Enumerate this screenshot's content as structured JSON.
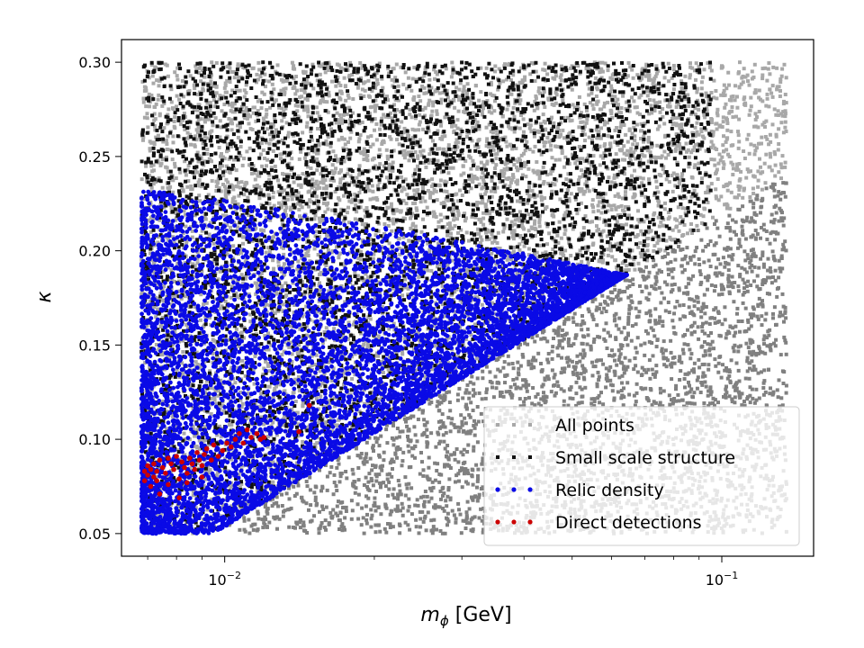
{
  "chart_data": {
    "type": "scatter",
    "title": "",
    "xlabel": "m_ϕ [GeV]",
    "xlabel_main": "m",
    "xlabel_sub": "ϕ",
    "xlabel_unit": " [GeV]",
    "ylabel": "κ",
    "xscale": "log",
    "xlim": [
      0.0062,
      0.153
    ],
    "ylim": [
      0.038,
      0.312
    ],
    "x_ticks": [
      {
        "value": 0.01,
        "base": "10",
        "exp": "−2"
      },
      {
        "value": 0.1,
        "base": "10",
        "exp": "−1"
      }
    ],
    "y_ticks": [
      {
        "value": 0.05,
        "label": "0.05"
      },
      {
        "value": 0.1,
        "label": "0.10"
      },
      {
        "value": 0.15,
        "label": "0.15"
      },
      {
        "value": 0.2,
        "label": "0.20"
      },
      {
        "value": 0.25,
        "label": "0.25"
      },
      {
        "value": 0.3,
        "label": "0.30"
      }
    ],
    "grid": false,
    "legend_position": "bottom-right",
    "series": [
      {
        "name": "All points",
        "color": "#8c8c8c",
        "region": {
          "x_range": [
            0.0068,
            0.135
          ],
          "y_range": [
            0.05,
            0.3
          ]
        }
      },
      {
        "name": "Small scale structure",
        "color": "#111111",
        "region": {
          "x_range": [
            0.0068,
            0.095
          ],
          "y_range": [
            0.05,
            0.3
          ]
        }
      },
      {
        "name": "Relic density",
        "color": "#0a0ae6",
        "region": {
          "x_range": [
            0.0068,
            0.08
          ],
          "y_range": [
            0.05,
            0.235
          ]
        }
      },
      {
        "name": "Direct detections",
        "color": "#cc0000",
        "points": [
          [
            0.0069,
            0.083
          ],
          [
            0.0069,
            0.078
          ],
          [
            0.007,
            0.086
          ],
          [
            0.007,
            0.081
          ],
          [
            0.0071,
            0.084
          ],
          [
            0.0071,
            0.075
          ],
          [
            0.0072,
            0.08
          ],
          [
            0.0072,
            0.087
          ],
          [
            0.0073,
            0.083
          ],
          [
            0.0073,
            0.078
          ],
          [
            0.0074,
            0.089
          ],
          [
            0.0074,
            0.071
          ],
          [
            0.0075,
            0.085
          ],
          [
            0.0076,
            0.082
          ],
          [
            0.0077,
            0.09
          ],
          [
            0.0077,
            0.076
          ],
          [
            0.0078,
            0.087
          ],
          [
            0.0079,
            0.084
          ],
          [
            0.008,
            0.091
          ],
          [
            0.0081,
            0.079
          ],
          [
            0.0082,
            0.088
          ],
          [
            0.0083,
            0.085
          ],
          [
            0.0084,
            0.082
          ],
          [
            0.0085,
            0.09
          ],
          [
            0.0086,
            0.087
          ],
          [
            0.0087,
            0.084
          ],
          [
            0.0088,
            0.093
          ],
          [
            0.0089,
            0.089
          ],
          [
            0.009,
            0.086
          ],
          [
            0.0091,
            0.092
          ],
          [
            0.0092,
            0.095
          ],
          [
            0.0094,
            0.089
          ],
          [
            0.0095,
            0.097
          ],
          [
            0.0097,
            0.091
          ],
          [
            0.0099,
            0.094
          ],
          [
            0.0101,
            0.098
          ],
          [
            0.0103,
            0.096
          ],
          [
            0.0105,
            0.1
          ],
          [
            0.0107,
            0.103
          ],
          [
            0.0109,
            0.098
          ],
          [
            0.0111,
            0.105
          ],
          [
            0.0113,
            0.101
          ],
          [
            0.0116,
            0.103
          ],
          [
            0.0118,
            0.1
          ],
          [
            0.012,
            0.101
          ],
          [
            0.0141,
            0.104
          ],
          [
            0.0148,
            0.118
          ],
          [
            0.0081,
            0.069
          ],
          [
            0.0084,
            0.077
          ],
          [
            0.009,
            0.08
          ]
        ]
      }
    ]
  }
}
